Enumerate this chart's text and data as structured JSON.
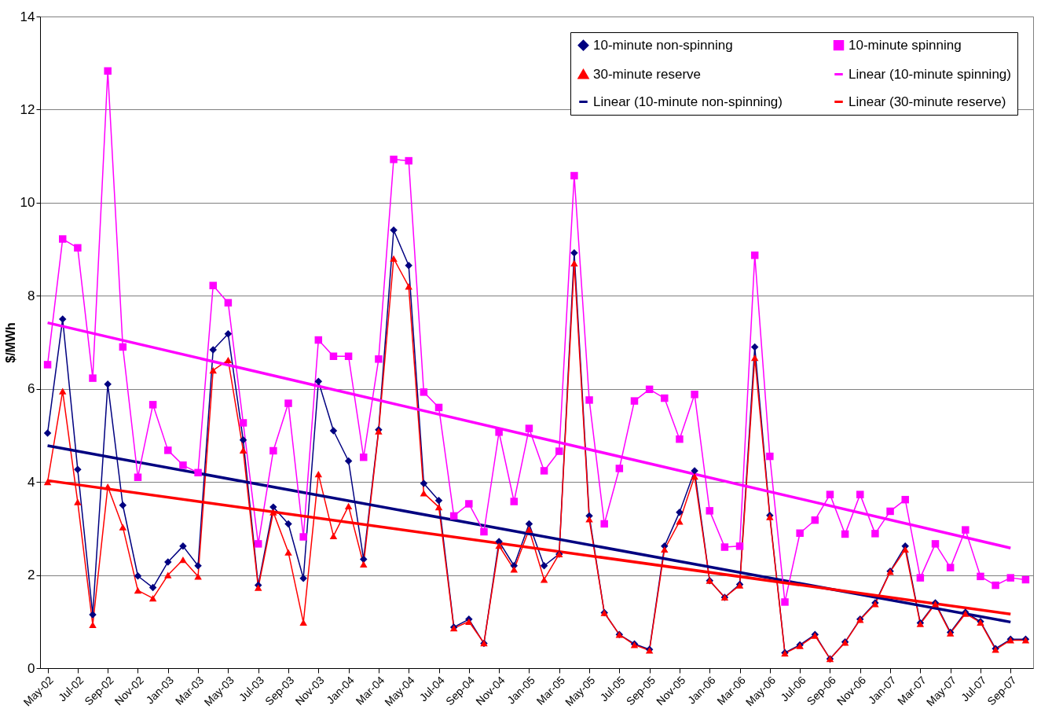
{
  "chart_data": {
    "type": "line",
    "ylabel": "$/MWh",
    "categories": [
      "May-02",
      null,
      "Jul-02",
      null,
      "Sep-02",
      null,
      "Nov-02",
      null,
      "Jan-03",
      null,
      "Mar-03",
      null,
      "May-03",
      null,
      "Jul-03",
      null,
      "Sep-03",
      null,
      "Nov-03",
      null,
      "Jan-04",
      null,
      "Mar-04",
      null,
      "May-04",
      null,
      "Jul-04",
      null,
      "Sep-04",
      null,
      "Nov-04",
      null,
      "Jan-05",
      null,
      "Mar-05",
      null,
      "May-05",
      null,
      "Jul-05",
      null,
      "Sep-05",
      null,
      "Nov-05",
      null,
      "Jan-06",
      null,
      "Mar-06",
      null,
      "May-06",
      null,
      "Jul-06",
      null,
      "Sep-06",
      null,
      "Nov-06",
      null,
      "Jan-07",
      null,
      "Mar-07",
      null,
      "May-07",
      null,
      "Jul-07",
      null,
      "Sep-07",
      null
    ],
    "series": [
      {
        "name": "10-minute non-spinning",
        "marker": "diamond",
        "color": "#000080",
        "values": [
          5.05,
          7.5,
          4.27,
          1.15,
          6.1,
          3.5,
          1.98,
          1.73,
          2.28,
          2.62,
          2.2,
          6.84,
          7.18,
          4.9,
          1.78,
          3.46,
          3.1,
          1.93,
          6.16,
          5.1,
          4.45,
          2.34,
          5.12,
          9.41,
          8.65,
          3.97,
          3.6,
          0.88,
          1.05,
          0.53,
          2.72,
          2.2,
          3.1,
          2.2,
          2.45,
          8.92,
          3.27,
          1.19,
          0.72,
          0.52,
          0.4,
          2.62,
          3.35,
          4.24,
          1.88,
          1.52,
          1.8,
          6.9,
          3.28,
          0.33,
          0.5,
          0.72,
          0.2,
          0.56,
          1.05,
          1.4,
          2.08,
          2.62,
          0.97,
          1.4,
          0.77,
          1.2,
          1.0,
          0.42,
          0.62,
          0.62
        ]
      },
      {
        "name": "30-minute reserve",
        "marker": "triangle",
        "color": "#ff0000",
        "values": [
          4.0,
          5.95,
          3.57,
          0.93,
          3.9,
          3.03,
          1.67,
          1.5,
          2.0,
          2.33,
          1.97,
          6.4,
          6.62,
          4.68,
          1.73,
          3.35,
          2.49,
          0.98,
          4.17,
          2.84,
          3.48,
          2.23,
          5.09,
          8.8,
          8.2,
          3.76,
          3.46,
          0.86,
          1.0,
          0.54,
          2.63,
          2.12,
          2.98,
          1.9,
          2.45,
          8.7,
          3.2,
          1.19,
          0.72,
          0.5,
          0.38,
          2.55,
          3.15,
          4.12,
          1.88,
          1.52,
          1.78,
          6.67,
          3.25,
          0.32,
          0.48,
          0.7,
          0.2,
          0.55,
          1.04,
          1.38,
          2.07,
          2.55,
          0.95,
          1.38,
          0.75,
          1.17,
          0.98,
          0.4,
          0.6,
          0.6
        ]
      },
      {
        "name": "Linear (10-minute non-spinning)",
        "marker": "none",
        "color": "#000080",
        "x": [
          "May-02",
          "Sep-07"
        ],
        "values": [
          4.78,
          0.99
        ]
      },
      {
        "name": "10-minute spinning",
        "marker": "square",
        "color": "#ff00ff",
        "values": [
          6.52,
          9.22,
          9.03,
          6.23,
          12.83,
          6.9,
          4.1,
          5.66,
          4.68,
          4.36,
          4.2,
          8.22,
          7.85,
          5.27,
          2.67,
          4.67,
          5.69,
          2.82,
          7.05,
          6.7,
          6.7,
          4.53,
          6.64,
          10.93,
          10.9,
          5.93,
          5.6,
          3.27,
          3.53,
          2.93,
          5.07,
          3.58,
          5.15,
          4.24,
          4.66,
          10.58,
          5.76,
          3.1,
          4.29,
          5.74,
          5.99,
          5.8,
          4.92,
          5.88,
          3.38,
          2.6,
          2.62,
          8.87,
          4.55,
          1.42,
          2.9,
          3.18,
          3.73,
          2.88,
          3.73,
          2.89,
          3.37,
          3.62,
          1.94,
          2.67,
          2.16,
          2.97,
          1.97,
          1.78,
          1.94,
          1.9
        ]
      },
      {
        "name": "Linear (10-minute spinning)",
        "marker": "none",
        "color": "#ff00ff",
        "x": [
          "May-02",
          "Sep-07"
        ],
        "values": [
          7.42,
          2.58
        ]
      },
      {
        "name": "Linear (30-minute reserve)",
        "marker": "none",
        "color": "#ff0000",
        "x": [
          "May-02",
          "Sep-07"
        ],
        "values": [
          4.03,
          1.16
        ]
      }
    ],
    "ylim": [
      0,
      14
    ],
    "yticks": [
      0,
      2,
      4,
      6,
      8,
      10,
      12,
      14
    ],
    "grid": "y",
    "legend": "top right"
  }
}
